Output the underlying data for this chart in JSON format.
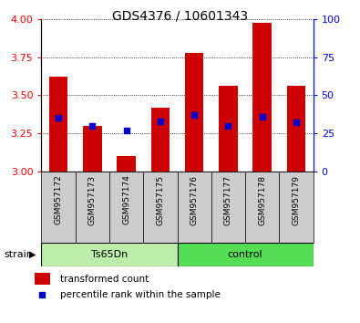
{
  "title": "GDS4376 / 10601343",
  "categories": [
    "GSM957172",
    "GSM957173",
    "GSM957174",
    "GSM957175",
    "GSM957176",
    "GSM957177",
    "GSM957178",
    "GSM957179"
  ],
  "red_values": [
    3.62,
    3.3,
    3.1,
    3.42,
    3.78,
    3.56,
    3.98,
    3.56
  ],
  "blue_values": [
    3.35,
    3.3,
    3.27,
    3.33,
    3.37,
    3.3,
    3.36,
    3.32
  ],
  "ylim": [
    3.0,
    4.0
  ],
  "yticks_left": [
    3.0,
    3.25,
    3.5,
    3.75,
    4.0
  ],
  "yticks_right": [
    0,
    25,
    50,
    75,
    100
  ],
  "group1_label": "Ts65Dn",
  "group1_color": "#bbeeaa",
  "group2_label": "control",
  "group2_color": "#55dd55",
  "bar_color": "#cc0000",
  "blue_marker_color": "#0000cc",
  "bar_width": 0.55,
  "bg_xtick": "#cccccc",
  "legend_red": "transformed count",
  "legend_blue": "percentile rank within the sample",
  "strain_label": "strain",
  "ybase": 3.0,
  "n_groups1": 4,
  "n_groups2": 4
}
